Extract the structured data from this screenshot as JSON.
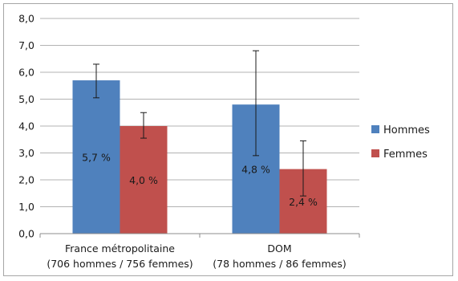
{
  "chart_data": {
    "type": "bar",
    "title": "",
    "xlabel": "",
    "ylabel": "",
    "ylim": [
      0,
      8
    ],
    "y_ticks": [
      "0,0",
      "1,0",
      "2,0",
      "3,0",
      "4,0",
      "5,0",
      "6,0",
      "7,0",
      "8,0"
    ],
    "categories": [
      [
        "France métropolitaine",
        "(706 hommes / 756 femmes)"
      ],
      [
        "DOM",
        "(78 hommes / 86 femmes)"
      ]
    ],
    "series": [
      {
        "name": "Hommes",
        "color": "#4f81bd",
        "values": [
          5.7,
          4.8
        ],
        "labels": [
          "5,7 %",
          "4,8 %"
        ],
        "error_low": [
          5.05,
          2.9
        ],
        "error_high": [
          6.3,
          6.8
        ]
      },
      {
        "name": "Femmes",
        "color": "#c0504d",
        "values": [
          4.0,
          2.4
        ],
        "labels": [
          "4,0 %",
          "2,4 %"
        ],
        "error_low": [
          3.55,
          1.4
        ],
        "error_high": [
          4.5,
          3.45
        ]
      }
    ],
    "grid": true,
    "legend_position": "right"
  }
}
